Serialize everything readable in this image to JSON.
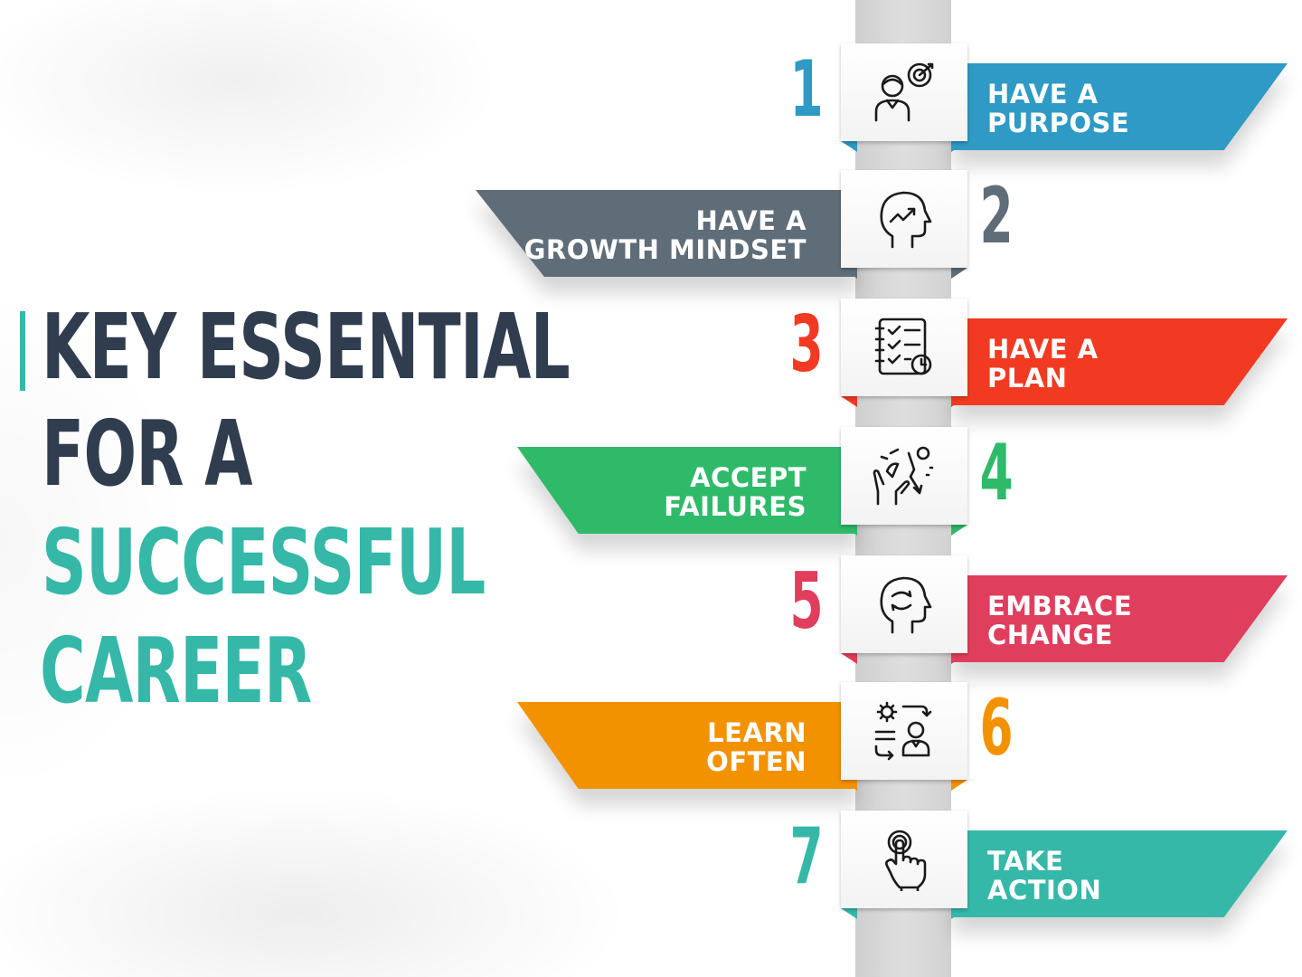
{
  "title": {
    "line1": "KEY ESSENTIAL",
    "line2": "FOR A",
    "line3": "SUCCESSFUL",
    "line4": "CAREER",
    "dark_color": "#2f3d4f",
    "accent_color": "#35b8a8"
  },
  "steps": [
    {
      "number": "1",
      "line1": "HAVE A",
      "line2": "PURPOSE",
      "side": "right",
      "color": "#2e9ac5",
      "icon": "person-target-icon"
    },
    {
      "number": "2",
      "line1": "HAVE A",
      "line2": "GROWTH MINDSET",
      "side": "left",
      "color": "#5f6d79",
      "icon": "head-growth-icon"
    },
    {
      "number": "3",
      "line1": "HAVE A",
      "line2": "PLAN",
      "side": "right",
      "color": "#f23a22",
      "icon": "checklist-clock-icon"
    },
    {
      "number": "4",
      "line1": "ACCEPT",
      "line2": "FAILURES",
      "side": "left",
      "color": "#2fba6a",
      "icon": "hands-failure-icon"
    },
    {
      "number": "5",
      "line1": "EMBRACE",
      "line2": "CHANGE",
      "side": "right",
      "color": "#e03e5d",
      "icon": "head-change-icon"
    },
    {
      "number": "6",
      "line1": "LEARN",
      "line2": "OFTEN",
      "side": "left",
      "color": "#f39200",
      "icon": "learning-person-icon"
    },
    {
      "number": "7",
      "line1": "TAKE",
      "line2": "ACTION",
      "side": "right",
      "color": "#35b8a8",
      "icon": "touch-hand-icon"
    }
  ]
}
